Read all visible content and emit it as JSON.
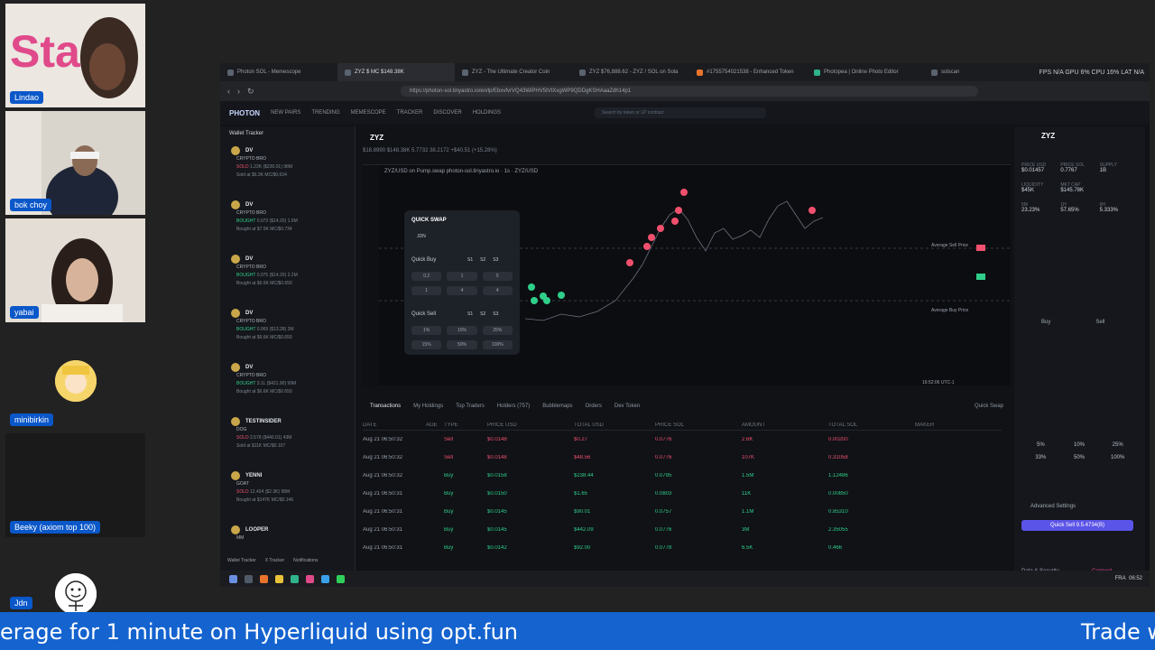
{
  "participants": [
    {
      "name": "Lindao"
    },
    {
      "name": "bok choy"
    },
    {
      "name": "yabai"
    },
    {
      "name": "minibirkin"
    },
    {
      "name": "Beeky (axiom top 100)"
    },
    {
      "name": "Jdn"
    }
  ],
  "browser": {
    "tabs": [
      {
        "label": "Photon SOL - Memescope"
      },
      {
        "label": "ZYZ $ MC $148.38K"
      },
      {
        "label": "ZYZ - The Ultimate Creator Coin"
      },
      {
        "label": "ZYZ $76,888.62 - ZYZ / SOL on Sola"
      },
      {
        "label": "#1755754021538 - Enhanced Token"
      },
      {
        "label": "Photopea | Online Photo Editor"
      },
      {
        "label": "solscan"
      }
    ],
    "sysinfo": "FPS N/A GPU 6% CPU 16% LAT N/A",
    "url": "https://photon-sol.tinyastro.io/en/lp/EbxvfvrVQ43WiPHV5tVtXxgWP9QDDgKSHAaaZdh14p1"
  },
  "app": {
    "logo": "PHOTON",
    "nav": [
      "NEW PAIRS",
      "TRENDING",
      "MEMESCOPE",
      "TRACKER",
      "DISCOVER",
      "HOLDINGS"
    ],
    "search_placeholder": "Search by token or LP contract"
  },
  "wallet_tracker": {
    "title": "Wallet Tracker",
    "rows": [
      {
        "who": "DV",
        "sub": "CRYPTO BRO",
        "action": "SOLD",
        "detail": "1.22K ($230.01) 98M",
        "mc": "Sold at $6.3K MC/$0.634",
        "side": "sell"
      },
      {
        "who": "DV",
        "sub": "CRYPTO BRO",
        "action": "BOUGHT",
        "detail": "0.073 ($14.20) 1.9M",
        "mc": "Bought at $7.5K MC/$0.734",
        "side": "buy"
      },
      {
        "who": "DV",
        "sub": "CRYPTO BRO",
        "action": "BOUGHT",
        "detail": "0.075 ($14.20) 2.2M",
        "mc": "Bought at $6.5K MC/$0.650",
        "side": "buy"
      },
      {
        "who": "DV",
        "sub": "CRYPTO BRO",
        "action": "BOUGHT",
        "detail": "0.069 ($13.28) 2M",
        "mc": "Bought at $6.6K MC/$0.650",
        "side": "buy"
      },
      {
        "who": "DV",
        "sub": "CRYPTO BRO",
        "action": "BOUGHT",
        "detail": "3.1L ($421.90) 99M",
        "mc": "Bought at $6.6K MC/$0.650",
        "side": "buy"
      },
      {
        "who": "TESTINSIDER",
        "sub": "DOG",
        "action": "SOLD",
        "detail": "2.578 ($440.01) 43M",
        "mc": "Sold at $11K MC/$0.107",
        "side": "sell"
      },
      {
        "who": "YENNI",
        "sub": "GOAT",
        "action": "SOLD",
        "detail": "12.424 ($2.3K) 98M",
        "mc": "Bought at $147K MC/$0.146",
        "side": "sell"
      },
      {
        "who": "LOOPER",
        "sub": "MM",
        "action": "",
        "detail": "",
        "mc": "",
        "side": "sell"
      }
    ],
    "footer_tabs": [
      "Wallet Tracker",
      "X Tracker",
      "Notifications"
    ]
  },
  "token": {
    "symbol": "ZYZ",
    "stats": "$18.8990   $148.38K   5.7732   38.2172   +$40.51 (+15.28%)",
    "chart_title": "ZYZ/USD on Pump.swap photon-sol.tinyastro.io · 1s · ZYZ/USD",
    "avg_sell_label": "Average Sell Price",
    "avg_buy_label": "Average Buy Price",
    "time_readout": "16:52:06 UTC-1"
  },
  "quick_swap": {
    "title": "QUICK SWAP",
    "token": "JDN",
    "buy_label": "Quick Buy",
    "buy_tabs": [
      "S1",
      "S2",
      "S3"
    ],
    "buy_amounts": [
      "0.2",
      "1",
      "5",
      "1",
      "4",
      "4"
    ],
    "sell_label": "Quick Sell",
    "sell_tabs": [
      "S1",
      "S2",
      "S3"
    ],
    "sell_amounts": [
      "1%",
      "10%",
      "25%",
      "15%",
      "50%",
      "100%"
    ]
  },
  "bottom_tabs": [
    "Transactions",
    "My Holdings",
    "Top Traders",
    "Holders (757)",
    "Bubblemaps",
    "Orders",
    "Dev Token",
    "Quick Swap"
  ],
  "tx_headers": [
    "DATE",
    "AGE",
    "TYPE",
    "PRICE USD",
    "TOTAL USD",
    "PRICE SOL",
    "AMOUNT",
    "TOTAL SOL",
    "MAKER"
  ],
  "transactions": [
    {
      "date": "Aug 21 06:50:32",
      "type": "Sell",
      "price": "$0.0148",
      "total": "$0.27",
      "psol": "0.0776",
      "amt": "2.6K",
      "tsol": "0.00200",
      "side": "sell"
    },
    {
      "date": "Aug 21 06:50:32",
      "type": "Sell",
      "price": "$0.0148",
      "total": "$48.56",
      "psol": "0.0776",
      "amt": "107K",
      "tsol": "0.31058",
      "side": "sell"
    },
    {
      "date": "Aug 21 06:50:32",
      "type": "Buy",
      "price": "$0.0158",
      "total": "$238.44",
      "psol": "0.0795",
      "amt": "1.5M",
      "tsol": "1.12486",
      "side": "buy"
    },
    {
      "date": "Aug 21 06:50:31",
      "type": "Buy",
      "price": "$0.0150",
      "total": "$1.65",
      "psol": "0.0803",
      "amt": "11K",
      "tsol": "0.00850",
      "side": "buy"
    },
    {
      "date": "Aug 21 06:50:31",
      "type": "Buy",
      "price": "$0.0145",
      "total": "$90.01",
      "psol": "0.0757",
      "amt": "1.1M",
      "tsol": "0.85310",
      "side": "buy"
    },
    {
      "date": "Aug 21 06:50:31",
      "type": "Buy",
      "price": "$0.0145",
      "total": "$442.09",
      "psol": "0.0776",
      "amt": "3M",
      "tsol": "2.35055",
      "side": "buy"
    },
    {
      "date": "Aug 21 06:50:31",
      "type": "Buy",
      "price": "$0.0142",
      "total": "$92.00",
      "psol": "0.0778",
      "amt": "6.5K",
      "tsol": "0.466",
      "side": "buy"
    }
  ],
  "right_panel": {
    "symbol": "ZYZ",
    "stats": [
      {
        "label": "PRICE USD",
        "value": "$0.01457"
      },
      {
        "label": "PRICE SOL",
        "value": "0.7767"
      },
      {
        "label": "SUPPLY",
        "value": "1B"
      },
      {
        "label": "LIQUIDITY",
        "value": "$45K"
      },
      {
        "label": "MKT CAP",
        "value": "$145.78K"
      },
      {
        "label": "",
        "value": ""
      },
      {
        "label": "5M",
        "value": "23.23%"
      },
      {
        "label": "1H",
        "value": "57.65%"
      },
      {
        "label": "6H",
        "value": "5.333%"
      }
    ],
    "tabs": [
      "Buy",
      "Sell"
    ],
    "pcts": [
      "5%",
      "10%",
      "25%",
      "33%",
      "50%",
      "100%"
    ],
    "advanced": "Advanced Settings",
    "quick_sell": "Quick Sell 9.5.4734(B)",
    "data_security": "Data & Security",
    "connect": "Connect"
  },
  "taskbar": {
    "lang": "FRA",
    "time": "06:52"
  },
  "ticker": {
    "text_left": "erage for 1 minute on Hyperliquid using opt.fun",
    "text_right": "Trade w"
  },
  "colors": {
    "accent": "#1463cf",
    "buy": "#2fcf8a",
    "sell": "#f0506e",
    "badge": "#0a57c9"
  }
}
